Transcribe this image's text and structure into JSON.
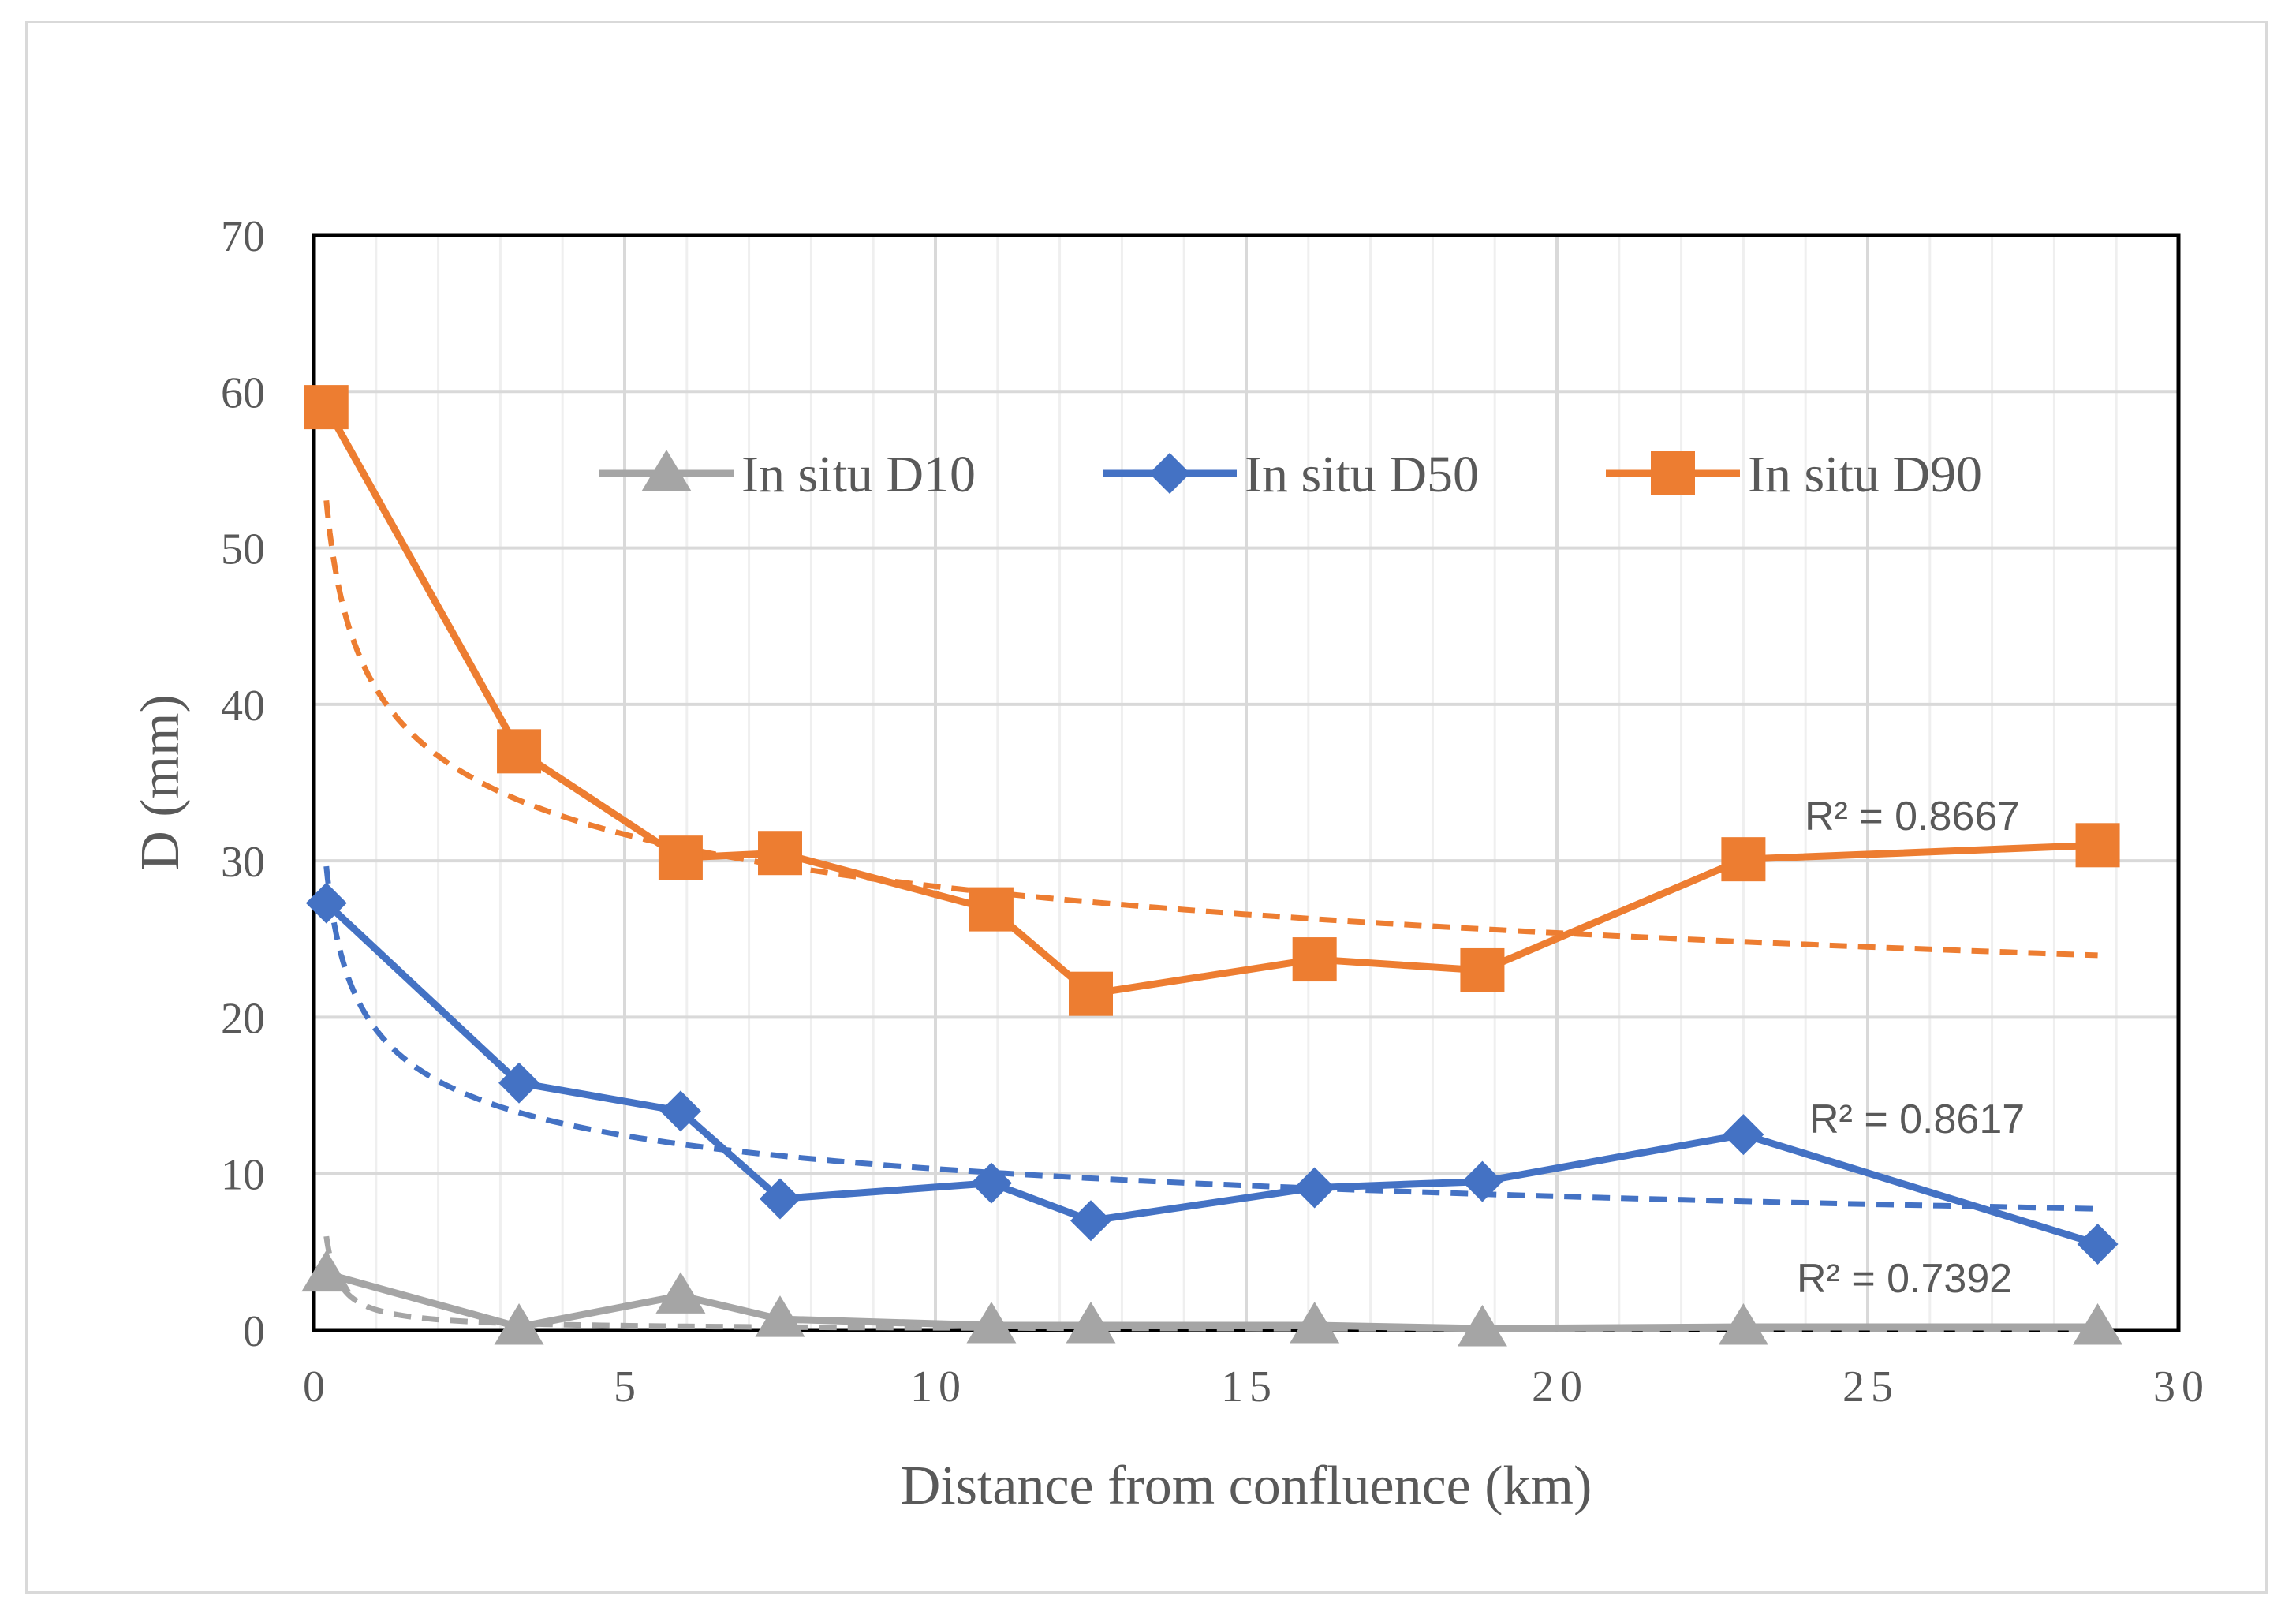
{
  "chart_data": {
    "type": "line",
    "title": "",
    "xlabel": "Distance from confluence (km)",
    "ylabel": "D (mm)",
    "xlim": [
      0,
      30
    ],
    "ylim": [
      0,
      70
    ],
    "xticks": [
      0,
      5,
      10,
      15,
      20,
      25,
      30
    ],
    "yticks": [
      0,
      10,
      20,
      30,
      40,
      50,
      60,
      70
    ],
    "grid": true,
    "legend_position": "top-center",
    "x": [
      0.2,
      3.3,
      5.9,
      7.5,
      10.9,
      12.5,
      16.1,
      18.8,
      23.0,
      28.7
    ],
    "series": [
      {
        "name": "In situ D10",
        "color": "#a5a5a5",
        "marker": "triangle",
        "values": [
          3.6,
          0.2,
          2.2,
          0.7,
          0.3,
          0.3,
          0.3,
          0.1,
          0.2,
          0.2
        ],
        "trendline": {
          "type": "power",
          "a": 1.3,
          "b": -0.95,
          "r2_label": "R² = 0.7392"
        }
      },
      {
        "name": "In situ D50",
        "color": "#4472c4",
        "marker": "diamond",
        "values": [
          27.3,
          15.8,
          14.0,
          8.4,
          9.4,
          7.0,
          9.1,
          9.5,
          12.5,
          5.5
        ],
        "trendline": {
          "type": "power",
          "a": 19.2,
          "b": -0.27,
          "r2_label": "R² = 0.8617"
        }
      },
      {
        "name": "In situ D90",
        "color": "#ed7d31",
        "marker": "square",
        "values": [
          59.0,
          37.0,
          30.2,
          30.5,
          26.9,
          21.5,
          23.7,
          23.0,
          30.1,
          31.0
        ],
        "trendline": {
          "type": "power",
          "a": 41.0,
          "b": -0.16,
          "r2_label": "R² = 0.8667"
        }
      }
    ]
  }
}
